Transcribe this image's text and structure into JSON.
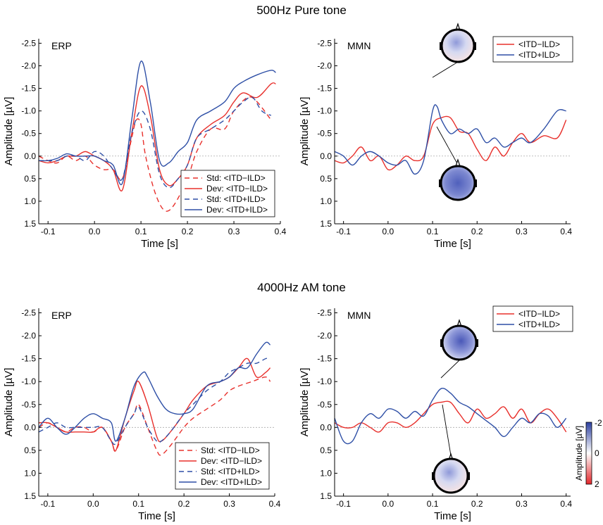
{
  "sections": [
    {
      "title": "500Hz Pure tone"
    },
    {
      "title": "4000Hz AM tone"
    }
  ],
  "colors": {
    "red": "#e8302c",
    "blue": "#2e4fa6",
    "axis": "#000000",
    "zero": "#aaaaaa"
  },
  "colorbar": {
    "label": "Amplitude [µV]",
    "ticks": [
      "-2",
      "0",
      "2"
    ],
    "top_color": "#2b3fa0",
    "bottom_color": "#e4262a"
  },
  "chart_data": [
    {
      "id": "erp-500",
      "type": "line",
      "panel_label": "ERP",
      "xlabel": "Time [s]",
      "ylabel": "Amplitude [µV]",
      "xlim": [
        -0.12,
        0.4
      ],
      "ylim": [
        -2.6,
        1.5
      ],
      "y_inverted": true,
      "xticks": [
        "-0.1",
        "0.0",
        "0.1",
        "0.2",
        "0.3",
        "0.4"
      ],
      "yticks": [
        "-2.5",
        "-2.0",
        "-1.5",
        "-1.0",
        "-0.5",
        "0.0",
        "0.5",
        "1.0",
        "1.5"
      ],
      "legend_position": "bottom-right",
      "series": [
        {
          "name": "Std:  <ITD−ILD>",
          "color": "red",
          "dashed": true,
          "x": [
            -0.12,
            -0.1,
            -0.08,
            -0.06,
            -0.04,
            -0.02,
            0.0,
            0.02,
            0.04,
            0.06,
            0.08,
            0.09,
            0.1,
            0.11,
            0.13,
            0.15,
            0.17,
            0.2,
            0.22,
            0.25,
            0.28,
            0.3,
            0.33,
            0.35,
            0.38
          ],
          "y": [
            0.0,
            0.1,
            0.15,
            0.0,
            0.1,
            0.0,
            0.2,
            0.3,
            0.3,
            0.5,
            -0.4,
            -0.8,
            -0.7,
            0.0,
            0.8,
            1.2,
            1.1,
            0.5,
            -0.1,
            -0.6,
            -0.6,
            -1.0,
            -1.3,
            -1.2,
            -0.8
          ]
        },
        {
          "name": "Dev:  <ITD−ILD>",
          "color": "red",
          "dashed": false,
          "x": [
            -0.12,
            -0.1,
            -0.08,
            -0.06,
            -0.04,
            -0.02,
            0.0,
            0.02,
            0.04,
            0.06,
            0.08,
            0.1,
            0.12,
            0.14,
            0.16,
            0.18,
            0.2,
            0.22,
            0.25,
            0.28,
            0.3,
            0.32,
            0.35,
            0.38,
            0.39
          ],
          "y": [
            0.1,
            0.15,
            0.1,
            0.0,
            0.0,
            -0.1,
            0.0,
            0.1,
            0.3,
            0.75,
            -0.5,
            -1.55,
            -0.9,
            0.3,
            0.65,
            0.5,
            0.2,
            -0.4,
            -0.7,
            -0.9,
            -1.2,
            -1.4,
            -1.3,
            -1.6,
            -1.6
          ]
        },
        {
          "name": "Std:  <ITD+ILD>",
          "color": "blue",
          "dashed": true,
          "x": [
            -0.12,
            -0.1,
            -0.08,
            -0.06,
            -0.04,
            -0.02,
            0.0,
            0.02,
            0.04,
            0.06,
            0.08,
            0.1,
            0.12,
            0.14,
            0.16,
            0.18,
            0.2,
            0.22,
            0.25,
            0.28,
            0.3,
            0.32,
            0.34,
            0.36,
            0.38
          ],
          "y": [
            0.1,
            0.1,
            0.1,
            0.0,
            0.0,
            0.1,
            -0.1,
            0.0,
            0.3,
            0.5,
            -0.5,
            -1.0,
            -0.6,
            0.4,
            0.7,
            0.5,
            0.2,
            -0.4,
            -0.6,
            -0.8,
            -1.0,
            -1.2,
            -1.3,
            -1.0,
            -0.9
          ]
        },
        {
          "name": "Dev:  <ITD+ILD>",
          "color": "blue",
          "dashed": false,
          "x": [
            -0.12,
            -0.1,
            -0.08,
            -0.06,
            -0.04,
            -0.02,
            0.0,
            0.02,
            0.04,
            0.06,
            0.08,
            0.1,
            0.12,
            0.14,
            0.16,
            0.18,
            0.2,
            0.22,
            0.25,
            0.28,
            0.3,
            0.32,
            0.35,
            0.38,
            0.39
          ],
          "y": [
            0.1,
            0.1,
            0.05,
            -0.05,
            0.0,
            0.0,
            0.0,
            0.1,
            0.2,
            0.6,
            -0.8,
            -2.1,
            -1.2,
            0.1,
            0.15,
            -0.1,
            -0.3,
            -0.8,
            -1.0,
            -1.2,
            -1.5,
            -1.65,
            -1.8,
            -1.9,
            -1.85
          ]
        }
      ]
    },
    {
      "id": "mmn-500",
      "type": "line",
      "panel_label": "MMN",
      "xlabel": "Time [s]",
      "ylabel": "Amplitude [µV]",
      "xlim": [
        -0.12,
        0.41
      ],
      "ylim": [
        -2.6,
        1.5
      ],
      "y_inverted": true,
      "xticks": [
        "-0.1",
        "0.0",
        "0.1",
        "0.2",
        "0.3",
        "0.4"
      ],
      "yticks": [
        "-2.5",
        "-2.0",
        "-1.5",
        "-1.0",
        "-0.5",
        "0.0",
        "0.5",
        "1.0",
        "1.5"
      ],
      "legend_position": "top-right",
      "series": [
        {
          "name": "<ITD−ILD>",
          "color": "red",
          "dashed": false,
          "x": [
            -0.12,
            -0.1,
            -0.08,
            -0.06,
            -0.04,
            -0.02,
            0.0,
            0.02,
            0.04,
            0.06,
            0.08,
            0.1,
            0.12,
            0.14,
            0.16,
            0.18,
            0.2,
            0.22,
            0.24,
            0.26,
            0.28,
            0.3,
            0.32,
            0.35,
            0.38,
            0.4
          ],
          "y": [
            0.1,
            0.15,
            0.0,
            -0.2,
            0.1,
            0.0,
            0.3,
            0.2,
            0.0,
            0.1,
            0.0,
            -0.7,
            -0.85,
            -0.85,
            -0.55,
            -0.5,
            -0.15,
            0.1,
            -0.2,
            0.0,
            -0.3,
            -0.5,
            -0.3,
            -0.45,
            -0.4,
            -0.8
          ]
        },
        {
          "name": "<ITD+ILD>",
          "color": "blue",
          "dashed": false,
          "x": [
            -0.12,
            -0.1,
            -0.08,
            -0.06,
            -0.04,
            -0.02,
            0.0,
            0.02,
            0.04,
            0.06,
            0.08,
            0.1,
            0.11,
            0.12,
            0.14,
            0.16,
            0.18,
            0.2,
            0.22,
            0.24,
            0.26,
            0.28,
            0.3,
            0.32,
            0.35,
            0.38,
            0.4
          ],
          "y": [
            -0.1,
            0.0,
            0.2,
            0.0,
            -0.1,
            0.0,
            0.15,
            0.2,
            0.1,
            0.4,
            0.1,
            -1.0,
            -1.1,
            -0.8,
            -0.5,
            -0.6,
            -0.5,
            -0.6,
            -0.3,
            -0.4,
            -0.2,
            -0.3,
            -0.4,
            -0.3,
            -0.6,
            -1.0,
            -1.0
          ]
        }
      ]
    },
    {
      "id": "erp-4000",
      "type": "line",
      "panel_label": "ERP",
      "xlabel": "Time [s]",
      "ylabel": "Amplitude [µV]",
      "xlim": [
        -0.12,
        0.4
      ],
      "ylim": [
        -2.6,
        1.5
      ],
      "y_inverted": true,
      "xticks": [
        "-0.1",
        "0.0",
        "0.1",
        "0.2",
        "0.3",
        "0.4"
      ],
      "yticks": [
        "-2.5",
        "-2.0",
        "-1.5",
        "-1.0",
        "-0.5",
        "0.0",
        "0.5",
        "1.0",
        "1.5"
      ],
      "legend_position": "bottom-right",
      "series": [
        {
          "name": "Std:  <ITD−ILD>",
          "color": "red",
          "dashed": true,
          "x": [
            -0.12,
            -0.1,
            -0.08,
            -0.06,
            -0.04,
            -0.02,
            0.0,
            0.02,
            0.04,
            0.05,
            0.07,
            0.09,
            0.1,
            0.12,
            0.14,
            0.15,
            0.17,
            0.2,
            0.22,
            0.25,
            0.28,
            0.3,
            0.32,
            0.35,
            0.38,
            0.39
          ],
          "y": [
            0.0,
            -0.1,
            0.0,
            0.1,
            0.0,
            0.0,
            0.1,
            0.0,
            0.3,
            0.5,
            0.0,
            -0.3,
            -0.5,
            0.0,
            0.5,
            0.6,
            0.4,
            0.0,
            -0.2,
            -0.4,
            -0.6,
            -0.8,
            -0.9,
            -1.0,
            -1.1,
            -1.0
          ]
        },
        {
          "name": "Dev:  <ITD−ILD>",
          "color": "red",
          "dashed": false,
          "x": [
            -0.12,
            -0.1,
            -0.08,
            -0.06,
            -0.04,
            -0.02,
            0.0,
            0.02,
            0.04,
            0.05,
            0.07,
            0.09,
            0.1,
            0.12,
            0.14,
            0.15,
            0.17,
            0.2,
            0.22,
            0.25,
            0.28,
            0.3,
            0.32,
            0.34,
            0.36,
            0.38,
            0.39
          ],
          "y": [
            -0.1,
            -0.1,
            0.0,
            0.1,
            0.1,
            0.1,
            0.1,
            0.0,
            0.3,
            0.5,
            -0.2,
            -0.8,
            -1.0,
            -0.5,
            0.2,
            0.3,
            0.1,
            -0.3,
            -0.6,
            -0.9,
            -1.0,
            -1.1,
            -1.3,
            -1.5,
            -1.1,
            -1.2,
            -1.3
          ]
        },
        {
          "name": "Std:  <ITD+ILD>",
          "color": "blue",
          "dashed": true,
          "x": [
            -0.12,
            -0.1,
            -0.08,
            -0.06,
            -0.04,
            -0.02,
            0.0,
            0.02,
            0.04,
            0.05,
            0.07,
            0.09,
            0.1,
            0.12,
            0.14,
            0.15,
            0.17,
            0.2,
            0.22,
            0.25,
            0.28,
            0.3,
            0.32,
            0.34,
            0.36,
            0.38,
            0.39
          ],
          "y": [
            0.1,
            0.0,
            -0.1,
            0.0,
            0.0,
            0.0,
            0.0,
            0.0,
            0.3,
            0.35,
            0.0,
            -0.3,
            -0.45,
            0.0,
            0.3,
            0.3,
            0.1,
            -0.3,
            -0.5,
            -0.8,
            -1.0,
            -1.2,
            -1.3,
            -1.4,
            -1.4,
            -1.5,
            -1.5
          ]
        },
        {
          "name": "Dev:  <ITD+ILD>",
          "color": "blue",
          "dashed": false,
          "x": [
            -0.12,
            -0.1,
            -0.08,
            -0.06,
            -0.04,
            -0.02,
            0.0,
            0.02,
            0.04,
            0.05,
            0.07,
            0.09,
            0.11,
            0.12,
            0.14,
            0.16,
            0.18,
            0.2,
            0.22,
            0.25,
            0.28,
            0.3,
            0.32,
            0.34,
            0.36,
            0.38,
            0.39
          ],
          "y": [
            0.0,
            -0.2,
            0.0,
            0.15,
            0.0,
            -0.2,
            -0.3,
            -0.2,
            -0.1,
            0.3,
            -0.2,
            -0.9,
            -1.2,
            -1.1,
            -0.7,
            -0.4,
            -0.3,
            -0.3,
            -0.4,
            -0.9,
            -1.0,
            -1.1,
            -1.3,
            -1.3,
            -1.6,
            -1.85,
            -1.8
          ]
        }
      ]
    },
    {
      "id": "mmn-4000",
      "type": "line",
      "panel_label": "MMN",
      "xlabel": "Time [s]",
      "ylabel": "Amplitude [µV]",
      "xlim": [
        -0.12,
        0.41
      ],
      "ylim": [
        -2.6,
        1.5
      ],
      "y_inverted": true,
      "xticks": [
        "-0.1",
        "0.0",
        "0.1",
        "0.2",
        "0.3",
        "0.4"
      ],
      "yticks": [
        "-2.5",
        "-2.0",
        "-1.5",
        "-1.0",
        "-0.5",
        "0.0",
        "0.5",
        "1.0",
        "1.5"
      ],
      "legend_position": "top-right",
      "series": [
        {
          "name": "<ITD−ILD>",
          "color": "red",
          "dashed": false,
          "x": [
            -0.12,
            -0.1,
            -0.08,
            -0.06,
            -0.04,
            -0.02,
            0.0,
            0.02,
            0.04,
            0.06,
            0.08,
            0.1,
            0.12,
            0.14,
            0.16,
            0.18,
            0.2,
            0.22,
            0.24,
            0.26,
            0.28,
            0.3,
            0.32,
            0.34,
            0.36,
            0.38,
            0.4
          ],
          "y": [
            -0.1,
            0.0,
            0.0,
            -0.1,
            0.0,
            0.1,
            -0.1,
            -0.1,
            0.0,
            -0.1,
            -0.3,
            -0.5,
            -0.55,
            -0.55,
            -0.3,
            -0.1,
            -0.4,
            -0.2,
            -0.3,
            -0.45,
            -0.2,
            -0.4,
            -0.1,
            -0.3,
            -0.4,
            -0.2,
            0.1
          ]
        },
        {
          "name": "<ITD+ILD>",
          "color": "blue",
          "dashed": false,
          "x": [
            -0.12,
            -0.1,
            -0.08,
            -0.06,
            -0.04,
            -0.02,
            0.0,
            0.02,
            0.04,
            0.06,
            0.08,
            0.1,
            0.12,
            0.14,
            0.16,
            0.18,
            0.2,
            0.22,
            0.24,
            0.26,
            0.28,
            0.3,
            0.32,
            0.34,
            0.36,
            0.38,
            0.4
          ],
          "y": [
            -0.2,
            0.3,
            0.3,
            -0.1,
            -0.3,
            -0.2,
            -0.4,
            -0.35,
            -0.2,
            -0.35,
            -0.25,
            -0.6,
            -0.85,
            -0.75,
            -0.55,
            -0.45,
            -0.3,
            -0.15,
            0.0,
            0.2,
            0.0,
            -0.2,
            -0.1,
            -0.3,
            -0.25,
            0.0,
            -0.2
          ]
        }
      ]
    }
  ]
}
